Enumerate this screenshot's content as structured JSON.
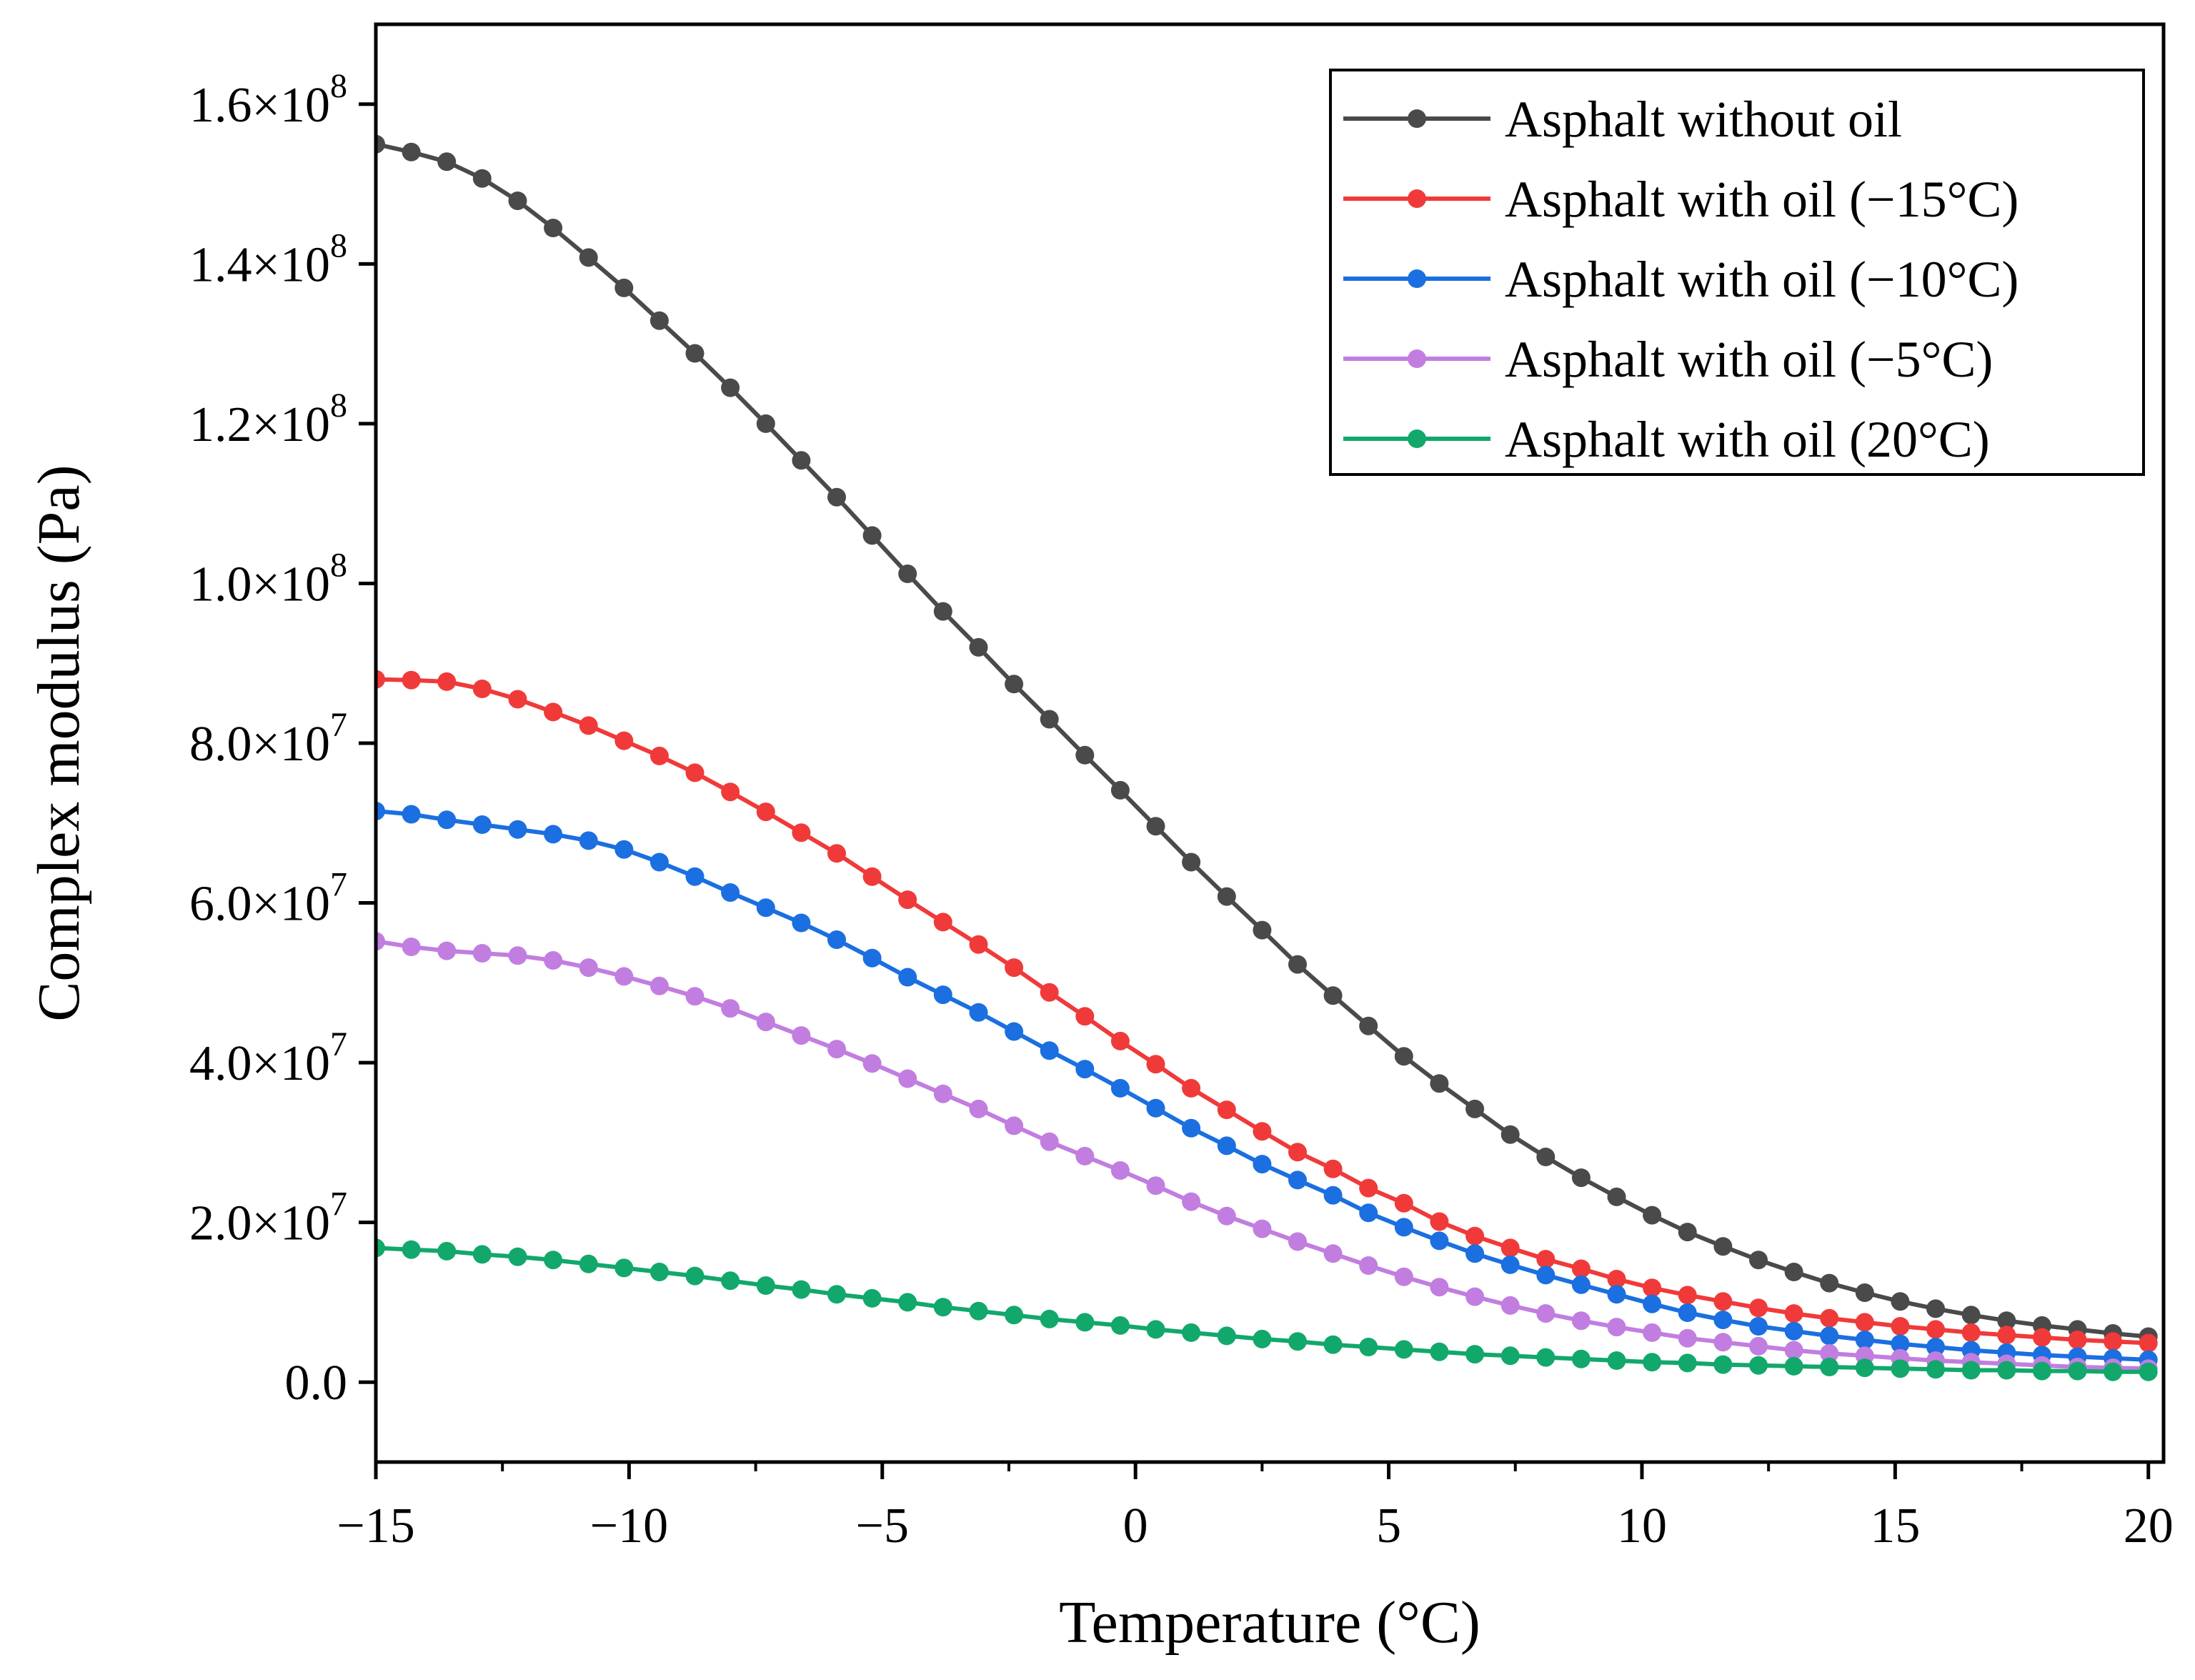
{
  "chart_data": {
    "type": "line",
    "xlabel": "Temperature (°C)",
    "ylabel": "Complex modulus (Pa)",
    "xlim": [
      -15,
      20.3
    ],
    "ylim": [
      -10000000,
      170000000
    ],
    "x_ticks": [
      -15,
      -10,
      -5,
      0,
      5,
      10,
      15,
      20
    ],
    "x_tick_labels": [
      "−15",
      "−10",
      "−5",
      "0",
      "5",
      "10",
      "15",
      "20"
    ],
    "y_ticks": [
      0,
      20000000,
      40000000,
      60000000,
      80000000,
      100000000,
      120000000,
      140000000,
      160000000
    ],
    "y_tick_labels": [
      {
        "base": "0.0",
        "exp": ""
      },
      {
        "base": "2.0×10",
        "exp": "7"
      },
      {
        "base": "4.0×10",
        "exp": "7"
      },
      {
        "base": "6.0×10",
        "exp": "7"
      },
      {
        "base": "8.0×10",
        "exp": "7"
      },
      {
        "base": "1.0×10",
        "exp": "8"
      },
      {
        "base": "1.2×10",
        "exp": "8"
      },
      {
        "base": "1.4×10",
        "exp": "8"
      },
      {
        "base": "1.6×10",
        "exp": "8"
      }
    ],
    "grid": false,
    "legend_position": "top-right",
    "x": [
      -15,
      -14.3,
      -13.6,
      -12.9,
      -12.2,
      -11.5,
      -10.8,
      -10.1,
      -9.4,
      -8.7,
      -8.0,
      -7.3,
      -6.6,
      -5.9,
      -5.2,
      -4.5,
      -3.8,
      -3.1,
      -2.4,
      -1.7,
      -1.0,
      -0.3,
      0.4,
      1.1,
      1.8,
      2.5,
      3.2,
      3.9,
      4.6,
      5.3,
      6.0,
      6.7,
      7.4,
      8.1,
      8.8,
      9.5,
      10.2,
      10.9,
      11.6,
      12.3,
      13.0,
      13.7,
      14.4,
      15.1,
      15.8,
      16.5,
      17.2,
      17.9,
      18.6,
      19.3,
      20.0
    ],
    "series": [
      {
        "name": "Asphalt without oil",
        "color": "#4a4a4a",
        "values": [
          155000000,
          154000000,
          152800000,
          150700000,
          147900000,
          144500000,
          140800000,
          137000000,
          132900000,
          128800000,
          124500000,
          120000000,
          115400000,
          110800000,
          106000000,
          101200000,
          96500000,
          92000000,
          87400000,
          83000000,
          78500000,
          74100000,
          69600000,
          65100000,
          60800000,
          56600000,
          52300000,
          48400000,
          44600000,
          40800000,
          37400000,
          34200000,
          31000000,
          28200000,
          25600000,
          23200000,
          20900000,
          18800000,
          17000000,
          15300000,
          13800000,
          12400000,
          11200000,
          10100000,
          9200000,
          8400000,
          7700000,
          7100000,
          6600000,
          6100000,
          5700000
        ]
      },
      {
        "name": "Asphalt with oil (−15°C)",
        "color": "#f03a3a",
        "values": [
          88000000,
          87900000,
          87700000,
          86800000,
          85500000,
          83900000,
          82200000,
          80300000,
          78400000,
          76300000,
          73900000,
          71400000,
          68800000,
          66200000,
          63300000,
          60400000,
          57600000,
          54800000,
          51900000,
          48800000,
          45800000,
          42700000,
          39800000,
          36800000,
          34100000,
          31400000,
          28800000,
          26700000,
          24300000,
          22400000,
          20100000,
          18300000,
          16800000,
          15400000,
          14200000,
          12900000,
          11800000,
          10900000,
          10100000,
          9300000,
          8600000,
          8000000,
          7500000,
          7000000,
          6600000,
          6200000,
          5900000,
          5600000,
          5300000,
          5100000,
          4900000
        ]
      },
      {
        "name": "Asphalt with oil (−10°C)",
        "color": "#1b6fe0",
        "values": [
          71500000,
          71100000,
          70400000,
          69800000,
          69200000,
          68600000,
          67800000,
          66700000,
          65100000,
          63300000,
          61300000,
          59400000,
          57500000,
          55400000,
          53100000,
          50700000,
          48500000,
          46300000,
          43900000,
          41500000,
          39200000,
          36800000,
          34300000,
          31800000,
          29600000,
          27300000,
          25300000,
          23400000,
          21200000,
          19400000,
          17700000,
          16100000,
          14700000,
          13400000,
          12200000,
          11000000,
          9800000,
          8700000,
          7800000,
          7000000,
          6400000,
          5800000,
          5300000,
          4800000,
          4400000,
          4000000,
          3700000,
          3400000,
          3200000,
          3000000,
          2800000
        ]
      },
      {
        "name": "Asphalt with oil  (−5°C)",
        "color": "#c17ee0",
        "values": [
          55200000,
          54500000,
          54000000,
          53700000,
          53400000,
          52800000,
          51900000,
          50800000,
          49600000,
          48300000,
          46800000,
          45100000,
          43400000,
          41700000,
          39900000,
          38000000,
          36100000,
          34200000,
          32100000,
          30100000,
          28300000,
          26500000,
          24600000,
          22600000,
          20800000,
          19200000,
          17600000,
          16100000,
          14600000,
          13200000,
          11900000,
          10700000,
          9600000,
          8600000,
          7700000,
          6900000,
          6200000,
          5500000,
          5000000,
          4500000,
          4000000,
          3600000,
          3300000,
          3000000,
          2700000,
          2500000,
          2300000,
          2100000,
          1900000,
          1800000,
          1700000
        ]
      },
      {
        "name": "Asphalt with oil (20°C)",
        "color": "#12a86b",
        "values": [
          16800000,
          16600000,
          16400000,
          16000000,
          15700000,
          15300000,
          14800000,
          14300000,
          13800000,
          13300000,
          12700000,
          12100000,
          11600000,
          11000000,
          10500000,
          10000000,
          9400000,
          8900000,
          8400000,
          7900000,
          7500000,
          7100000,
          6600000,
          6200000,
          5800000,
          5400000,
          5100000,
          4700000,
          4400000,
          4100000,
          3800000,
          3500000,
          3300000,
          3100000,
          2900000,
          2700000,
          2500000,
          2400000,
          2200000,
          2100000,
          2000000,
          1900000,
          1800000,
          1700000,
          1600000,
          1500000,
          1500000,
          1400000,
          1400000,
          1300000,
          1300000
        ]
      }
    ]
  }
}
